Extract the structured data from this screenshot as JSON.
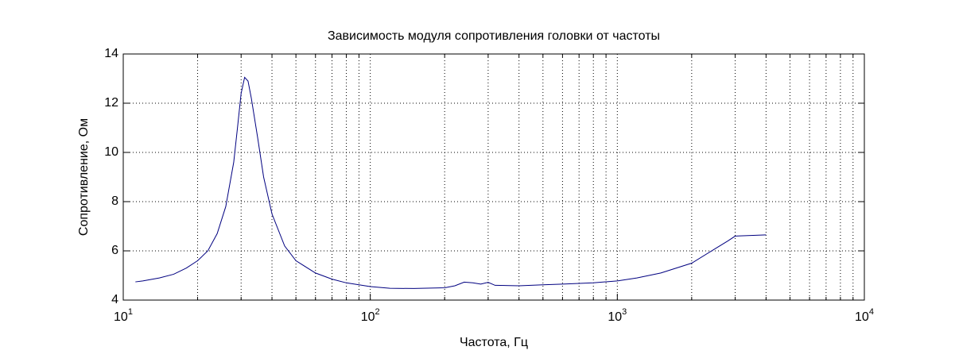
{
  "chart_data": {
    "type": "line",
    "title": "Зависимость модуля сопротивления головки от частоты",
    "x_label": "Частота, Гц",
    "y_label": "Сопротивление, Ом",
    "x_scale": "log",
    "grid": true,
    "minor_grid": true,
    "xlim": [
      10,
      10000
    ],
    "ylim": [
      4,
      14
    ],
    "xticks": [
      {
        "value": 10,
        "label": "10",
        "exponent": "1"
      },
      {
        "value": 100,
        "label": "10",
        "exponent": "2"
      },
      {
        "value": 1000,
        "label": "10",
        "exponent": "3"
      },
      {
        "value": 10000,
        "label": "10",
        "exponent": "4"
      }
    ],
    "yticks": [
      4,
      6,
      8,
      10,
      12,
      14
    ],
    "x": [
      11.2,
      12,
      14,
      16,
      18,
      20,
      22,
      24,
      26,
      28,
      29,
      30,
      31,
      32,
      33,
      35,
      37,
      40,
      45,
      50,
      60,
      70,
      80,
      100,
      120,
      150,
      200,
      220,
      240,
      260,
      280,
      300,
      320,
      400,
      500,
      600,
      800,
      1000,
      1200,
      1500,
      2000,
      2500,
      2800,
      3000,
      4000
    ],
    "series": [
      {
        "color": "#000080",
        "values": [
          4.74,
          4.78,
          4.9,
          5.05,
          5.3,
          5.6,
          6.0,
          6.7,
          7.8,
          9.6,
          11.0,
          12.4,
          13.05,
          12.9,
          12.2,
          10.6,
          9.0,
          7.5,
          6.2,
          5.6,
          5.1,
          4.85,
          4.7,
          4.55,
          4.48,
          4.47,
          4.5,
          4.58,
          4.73,
          4.7,
          4.65,
          4.72,
          4.6,
          4.58,
          4.62,
          4.65,
          4.7,
          4.78,
          4.9,
          5.1,
          5.5,
          6.1,
          6.4,
          6.6,
          6.65
        ]
      }
    ]
  }
}
